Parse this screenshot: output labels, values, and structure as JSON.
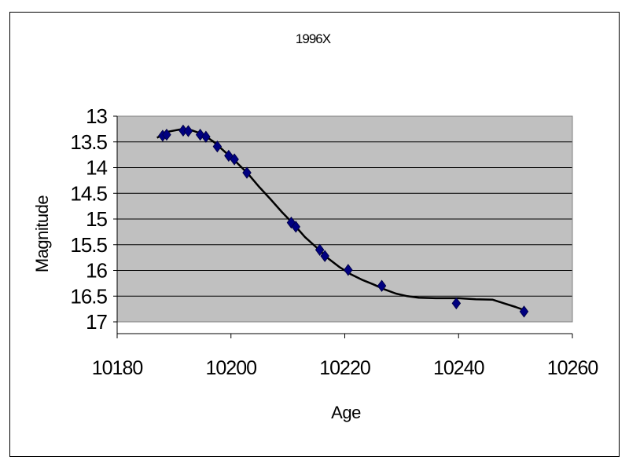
{
  "chart_data": {
    "type": "scatter",
    "title": "1996X",
    "xlabel": "Age",
    "ylabel": "Magnitude",
    "xlim": [
      10180,
      10260
    ],
    "ylim": [
      13,
      17
    ],
    "y_inverted": true,
    "x_ticks": [
      "10180",
      "10200",
      "10220",
      "10240",
      "10260"
    ],
    "y_ticks": [
      "13",
      "13.5",
      "14",
      "14.5",
      "15",
      "15.5",
      "16",
      "16.5",
      "17"
    ],
    "grid": "horizontal",
    "legend": "none",
    "colors": {
      "plot_area": "#c0c0c0",
      "marker": "#000080",
      "curve": "#000000",
      "grid": "#000000"
    },
    "points": [
      {
        "x": 10188.0,
        "y": 13.38
      },
      {
        "x": 10188.7,
        "y": 13.36
      },
      {
        "x": 10191.6,
        "y": 13.28
      },
      {
        "x": 10192.5,
        "y": 13.29
      },
      {
        "x": 10194.6,
        "y": 13.36
      },
      {
        "x": 10195.6,
        "y": 13.4
      },
      {
        "x": 10197.6,
        "y": 13.59
      },
      {
        "x": 10199.6,
        "y": 13.77
      },
      {
        "x": 10200.6,
        "y": 13.84
      },
      {
        "x": 10202.8,
        "y": 14.1
      },
      {
        "x": 10210.6,
        "y": 15.07
      },
      {
        "x": 10211.4,
        "y": 15.15
      },
      {
        "x": 10215.6,
        "y": 15.6
      },
      {
        "x": 10216.5,
        "y": 15.72
      },
      {
        "x": 10220.6,
        "y": 15.99
      },
      {
        "x": 10226.5,
        "y": 16.3
      },
      {
        "x": 10239.6,
        "y": 16.64
      },
      {
        "x": 10251.5,
        "y": 16.8
      }
    ],
    "fit_curve": [
      {
        "x": 10187.0,
        "y": 13.42
      },
      {
        "x": 10189.0,
        "y": 13.3
      },
      {
        "x": 10191.0,
        "y": 13.26
      },
      {
        "x": 10193.0,
        "y": 13.27
      },
      {
        "x": 10195.0,
        "y": 13.35
      },
      {
        "x": 10197.0,
        "y": 13.5
      },
      {
        "x": 10199.0,
        "y": 13.7
      },
      {
        "x": 10201.0,
        "y": 13.9
      },
      {
        "x": 10203.0,
        "y": 14.12
      },
      {
        "x": 10205.0,
        "y": 14.38
      },
      {
        "x": 10207.0,
        "y": 14.62
      },
      {
        "x": 10209.0,
        "y": 14.87
      },
      {
        "x": 10211.0,
        "y": 15.1
      },
      {
        "x": 10213.0,
        "y": 15.35
      },
      {
        "x": 10215.0,
        "y": 15.55
      },
      {
        "x": 10217.0,
        "y": 15.76
      },
      {
        "x": 10219.0,
        "y": 15.93
      },
      {
        "x": 10221.0,
        "y": 16.07
      },
      {
        "x": 10223.0,
        "y": 16.18
      },
      {
        "x": 10225.0,
        "y": 16.27
      },
      {
        "x": 10227.0,
        "y": 16.37
      },
      {
        "x": 10229.0,
        "y": 16.45
      },
      {
        "x": 10231.0,
        "y": 16.5
      },
      {
        "x": 10233.0,
        "y": 16.53
      },
      {
        "x": 10236.0,
        "y": 16.54
      },
      {
        "x": 10240.0,
        "y": 16.54
      },
      {
        "x": 10243.0,
        "y": 16.56
      },
      {
        "x": 10246.0,
        "y": 16.57
      },
      {
        "x": 10248.0,
        "y": 16.64
      },
      {
        "x": 10250.0,
        "y": 16.71
      },
      {
        "x": 10251.5,
        "y": 16.77
      }
    ]
  }
}
